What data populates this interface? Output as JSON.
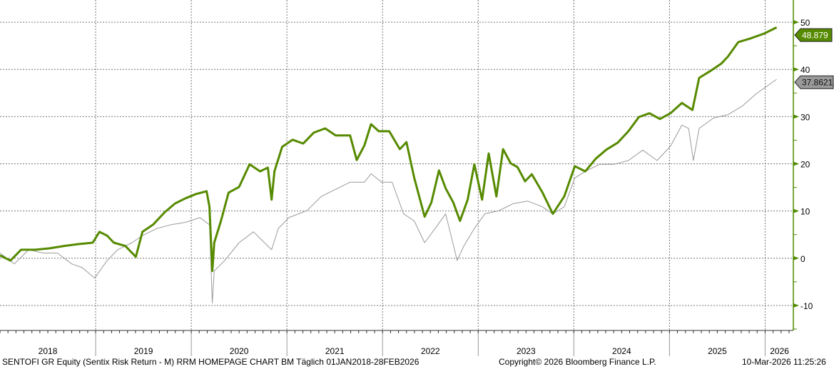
{
  "chart_data": {
    "type": "line",
    "xlabel": "",
    "ylabel": "",
    "xlim": [
      2018.0,
      2026.28
    ],
    "ylim": [
      -15.3,
      54.7
    ],
    "x_tick_labels": [
      "2018",
      "2019",
      "2020",
      "2021",
      "2022",
      "2023",
      "2024",
      "2025",
      "2026"
    ],
    "y_ticks": [
      -10,
      0,
      10,
      20,
      30,
      40,
      50
    ],
    "y_axis_side": "right",
    "grid": true,
    "colors": {
      "primary": "#568a00",
      "benchmark": "#9a9a9a",
      "axis": "#4e8a00"
    },
    "series": [
      {
        "key": "primary",
        "last_value_label": "48.879",
        "x": [
          2018.0,
          2018.11,
          2018.22,
          2018.37,
          2018.52,
          2018.67,
          2018.82,
          2018.97,
          2019.04,
          2019.12,
          2019.19,
          2019.31,
          2019.42,
          2019.49,
          2019.6,
          2019.72,
          2019.83,
          2019.94,
          2020.05,
          2020.16,
          2020.19,
          2020.22,
          2020.24,
          2020.31,
          2020.39,
          2020.5,
          2020.61,
          2020.72,
          2020.8,
          2020.84,
          2020.87,
          2020.95,
          2021.06,
          2021.17,
          2021.28,
          2021.4,
          2021.51,
          2021.66,
          2021.73,
          2021.81,
          2021.88,
          2021.96,
          2022.07,
          2022.18,
          2022.25,
          2022.33,
          2022.44,
          2022.51,
          2022.59,
          2022.66,
          2022.74,
          2022.81,
          2022.89,
          2022.96,
          2023.04,
          2023.11,
          2023.19,
          2023.26,
          2023.34,
          2023.41,
          2023.49,
          2023.56,
          2023.67,
          2023.78,
          2023.9,
          2024.01,
          2024.12,
          2024.23,
          2024.34,
          2024.46,
          2024.57,
          2024.68,
          2024.79,
          2024.9,
          2025.01,
          2025.13,
          2025.24,
          2025.31,
          2025.43,
          2025.54,
          2025.61,
          2025.72,
          2025.84,
          2025.99,
          2026.12
        ],
        "y": [
          0.6,
          -0.5,
          1.8,
          1.8,
          2.1,
          2.6,
          3.0,
          3.3,
          5.6,
          4.8,
          3.3,
          2.6,
          0.3,
          5.6,
          7.1,
          9.7,
          11.6,
          12.7,
          13.6,
          14.2,
          10.9,
          -2.7,
          3.3,
          7.9,
          13.9,
          15.1,
          19.9,
          18.4,
          19.2,
          12.4,
          18.4,
          23.6,
          25.1,
          24.3,
          26.6,
          27.5,
          26.0,
          26.0,
          20.8,
          23.9,
          28.4,
          26.9,
          26.9,
          23.1,
          24.6,
          17.1,
          8.8,
          11.8,
          18.6,
          14.8,
          11.8,
          7.9,
          12.4,
          19.9,
          12.4,
          22.2,
          13.1,
          23.1,
          20.1,
          19.3,
          16.3,
          17.8,
          14.0,
          9.4,
          13.1,
          19.5,
          18.4,
          21.1,
          23.0,
          24.5,
          26.9,
          29.9,
          30.7,
          29.5,
          30.7,
          32.9,
          31.4,
          38.2,
          39.7,
          41.2,
          42.7,
          45.8,
          46.5,
          47.6,
          48.9
        ]
      },
      {
        "key": "benchmark",
        "last_value_label": "37.8621",
        "x": [
          2018.0,
          2018.15,
          2018.3,
          2018.45,
          2018.6,
          2018.75,
          2018.86,
          2018.99,
          2019.12,
          2019.23,
          2019.38,
          2019.49,
          2019.64,
          2019.79,
          2019.94,
          2020.09,
          2020.19,
          2020.22,
          2020.24,
          2020.35,
          2020.5,
          2020.65,
          2020.84,
          2020.91,
          2021.02,
          2021.21,
          2021.36,
          2021.51,
          2021.66,
          2021.81,
          2021.88,
          2021.99,
          2022.1,
          2022.22,
          2022.33,
          2022.44,
          2022.55,
          2022.66,
          2022.78,
          2022.85,
          2022.96,
          2023.07,
          2023.22,
          2023.37,
          2023.52,
          2023.67,
          2023.78,
          2023.9,
          2024.01,
          2024.12,
          2024.27,
          2024.42,
          2024.57,
          2024.72,
          2024.87,
          2025.01,
          2025.13,
          2025.2,
          2025.25,
          2025.31,
          2025.46,
          2025.61,
          2025.76,
          2025.91,
          2026.12
        ],
        "y": [
          1.1,
          -1.2,
          1.8,
          1.1,
          1.1,
          -1.2,
          -2.0,
          -4.2,
          -0.5,
          1.8,
          3.3,
          4.8,
          6.3,
          7.1,
          7.6,
          8.6,
          7.1,
          -9.5,
          -2.7,
          -0.5,
          3.3,
          5.6,
          1.8,
          6.3,
          8.6,
          10.1,
          13.1,
          14.6,
          16.1,
          16.1,
          17.9,
          16.1,
          16.1,
          9.4,
          7.9,
          3.3,
          6.3,
          9.4,
          -0.5,
          2.6,
          6.3,
          9.4,
          10.1,
          11.6,
          12.1,
          10.9,
          9.4,
          10.9,
          17.0,
          18.4,
          19.9,
          19.9,
          20.7,
          22.9,
          20.7,
          23.7,
          28.2,
          27.5,
          20.7,
          27.5,
          29.7,
          30.4,
          32.2,
          34.9,
          37.9
        ]
      }
    ]
  },
  "footer": {
    "description": "SENTOFI GR Equity (Sentix Risk Return - M) RRM HOMEPAGE CHART BM Täglich 01JAN2018-28FEB2026",
    "copyright": "Copyright© 2026 Bloomberg Finance L.P.",
    "timestamp": "10-Mar-2026 11:25:26"
  }
}
